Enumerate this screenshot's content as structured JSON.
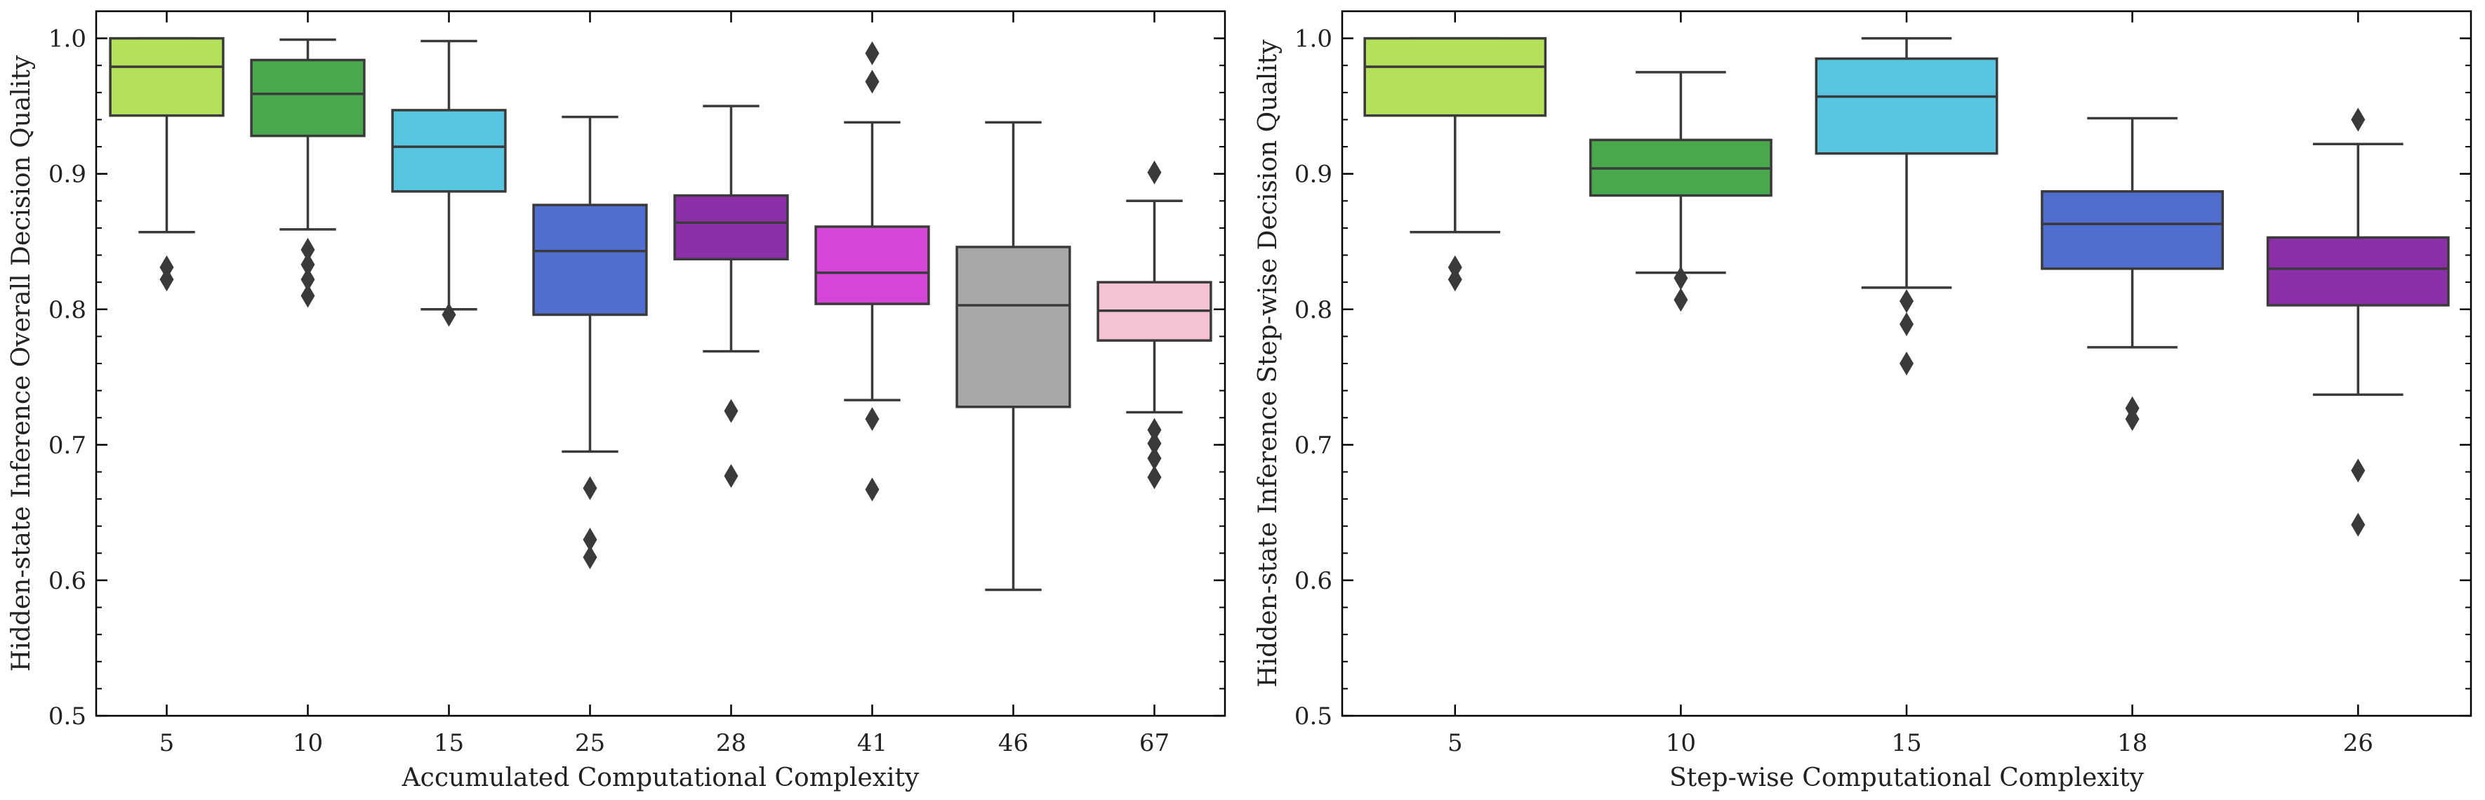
{
  "chart_data": [
    {
      "type": "box",
      "xlabel": "Accumulated Computational Complexity",
      "ylabel": "Hidden-state Inference Overall Decision Quality",
      "ylim": [
        0.5,
        1.02
      ],
      "yticks": [
        "0.5",
        "0.6",
        "0.7",
        "0.8",
        "0.9",
        "1.0"
      ],
      "grid": false,
      "categories": [
        "5",
        "10",
        "15",
        "25",
        "28",
        "41",
        "46",
        "67"
      ],
      "boxes": [
        {
          "category": "5",
          "q1": 0.943,
          "median": 0.979,
          "q3": 1.0,
          "whisker_low": 0.857,
          "whisker_high": 1.0,
          "outliers": [
            0.831,
            0.822
          ],
          "color": "#b5e05a"
        },
        {
          "category": "10",
          "q1": 0.928,
          "median": 0.959,
          "q3": 0.984,
          "whisker_low": 0.859,
          "whisker_high": 0.999,
          "outliers": [
            0.844,
            0.833,
            0.822,
            0.81
          ],
          "color": "#47a84e"
        },
        {
          "category": "15",
          "q1": 0.887,
          "median": 0.92,
          "q3": 0.947,
          "whisker_low": 0.8,
          "whisker_high": 0.998,
          "outliers": [
            0.796
          ],
          "color": "#58c6e0"
        },
        {
          "category": "25",
          "q1": 0.796,
          "median": 0.843,
          "q3": 0.877,
          "whisker_low": 0.695,
          "whisker_high": 0.942,
          "outliers": [
            0.668,
            0.63,
            0.617
          ],
          "color": "#4f6ed0"
        },
        {
          "category": "28",
          "q1": 0.837,
          "median": 0.864,
          "q3": 0.884,
          "whisker_low": 0.769,
          "whisker_high": 0.95,
          "outliers": [
            0.725,
            0.677
          ],
          "color": "#8c2fa8"
        },
        {
          "category": "41",
          "q1": 0.804,
          "median": 0.827,
          "q3": 0.861,
          "whisker_low": 0.733,
          "whisker_high": 0.938,
          "outliers": [
            0.989,
            0.968,
            0.719,
            0.667
          ],
          "color": "#d646d6"
        },
        {
          "category": "46",
          "q1": 0.728,
          "median": 0.803,
          "q3": 0.846,
          "whisker_low": 0.593,
          "whisker_high": 0.938,
          "outliers": [],
          "color": "#a8a8a8"
        },
        {
          "category": "67",
          "q1": 0.777,
          "median": 0.799,
          "q3": 0.82,
          "whisker_low": 0.724,
          "whisker_high": 0.88,
          "outliers": [
            0.901,
            0.711,
            0.701,
            0.69,
            0.676
          ],
          "color": "#f4c2d4"
        }
      ]
    },
    {
      "type": "box",
      "xlabel": "Step-wise Computational Complexity",
      "ylabel": "Hidden-state Inference Step-wise Decision Quality",
      "ylim": [
        0.5,
        1.02
      ],
      "yticks": [
        "0.5",
        "0.6",
        "0.7",
        "0.8",
        "0.9",
        "1.0"
      ],
      "grid": false,
      "categories": [
        "5",
        "10",
        "15",
        "18",
        "26"
      ],
      "boxes": [
        {
          "category": "5",
          "q1": 0.943,
          "median": 0.979,
          "q3": 1.0,
          "whisker_low": 0.857,
          "whisker_high": 1.0,
          "outliers": [
            0.831,
            0.822
          ],
          "color": "#b5e05a"
        },
        {
          "category": "10",
          "q1": 0.884,
          "median": 0.904,
          "q3": 0.925,
          "whisker_low": 0.827,
          "whisker_high": 0.975,
          "outliers": [
            0.823,
            0.807
          ],
          "color": "#47a84e"
        },
        {
          "category": "15",
          "q1": 0.915,
          "median": 0.957,
          "q3": 0.985,
          "whisker_low": 0.816,
          "whisker_high": 1.0,
          "outliers": [
            0.806,
            0.789,
            0.76
          ],
          "color": "#58c6e0"
        },
        {
          "category": "18",
          "q1": 0.83,
          "median": 0.863,
          "q3": 0.887,
          "whisker_low": 0.772,
          "whisker_high": 0.941,
          "outliers": [
            0.727,
            0.719
          ],
          "color": "#4f6ed0"
        },
        {
          "category": "26",
          "q1": 0.803,
          "median": 0.83,
          "q3": 0.853,
          "whisker_low": 0.737,
          "whisker_high": 0.922,
          "outliers": [
            0.94,
            0.681,
            0.641
          ],
          "color": "#8c2fa8"
        }
      ]
    }
  ]
}
